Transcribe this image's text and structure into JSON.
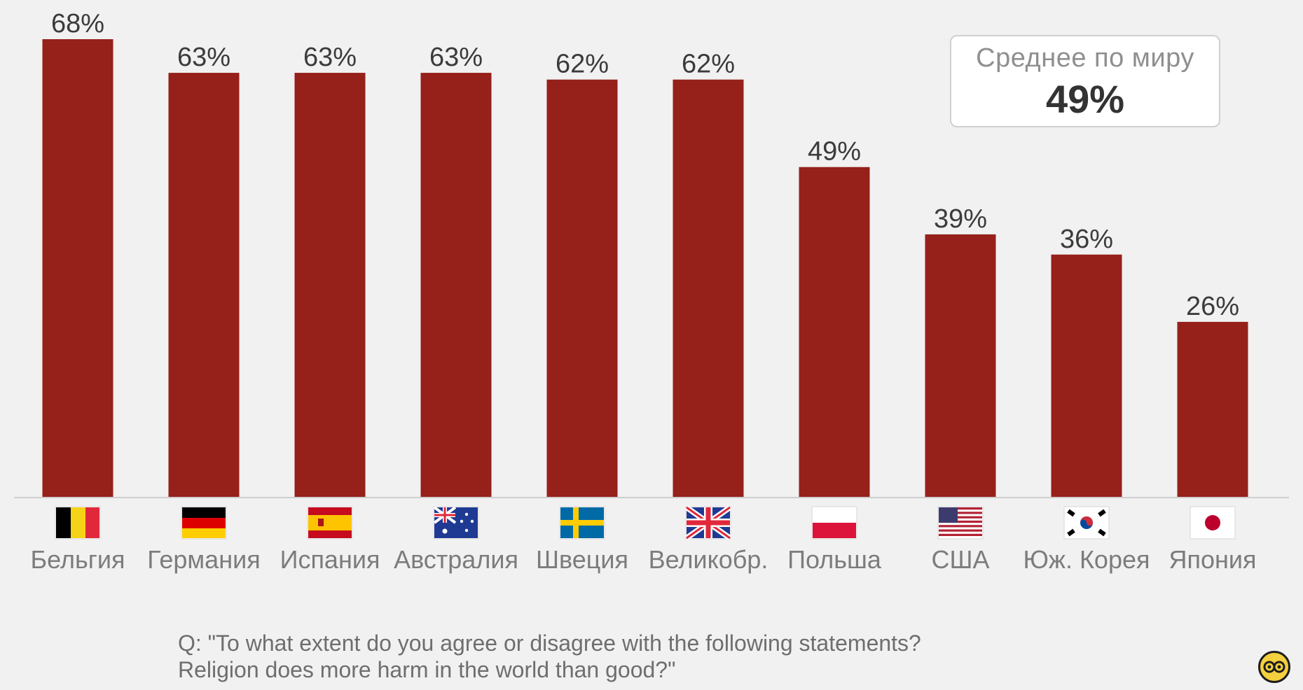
{
  "average": {
    "label": "Среднее по миру",
    "value": "49%"
  },
  "question": {
    "line1": "Q: \"To what extent do you agree or disagree with the following statements?",
    "line2": "Religion does more harm in the world than good?\""
  },
  "colors": {
    "bar": "#96201a",
    "background": "#f1f1f1"
  },
  "chart_data": {
    "type": "bar",
    "categories": [
      "Бельгия",
      "Германия",
      "Испания",
      "Австралия",
      "Швеция",
      "Великобр.",
      "Польша",
      "США",
      "Юж. Корея",
      "Япония"
    ],
    "values": [
      68,
      63,
      63,
      63,
      62,
      62,
      49,
      39,
      36,
      26
    ],
    "value_labels": [
      "68%",
      "63%",
      "63%",
      "63%",
      "62%",
      "62%",
      "49%",
      "39%",
      "36%",
      "26%"
    ],
    "flags": [
      "belgium-flag-icon",
      "germany-flag-icon",
      "spain-flag-icon",
      "australia-flag-icon",
      "sweden-flag-icon",
      "uk-flag-icon",
      "poland-flag-icon",
      "usa-flag-icon",
      "south-korea-flag-icon",
      "japan-flag-icon"
    ],
    "ylim": [
      0,
      68
    ],
    "grid": false,
    "legend": "none"
  }
}
